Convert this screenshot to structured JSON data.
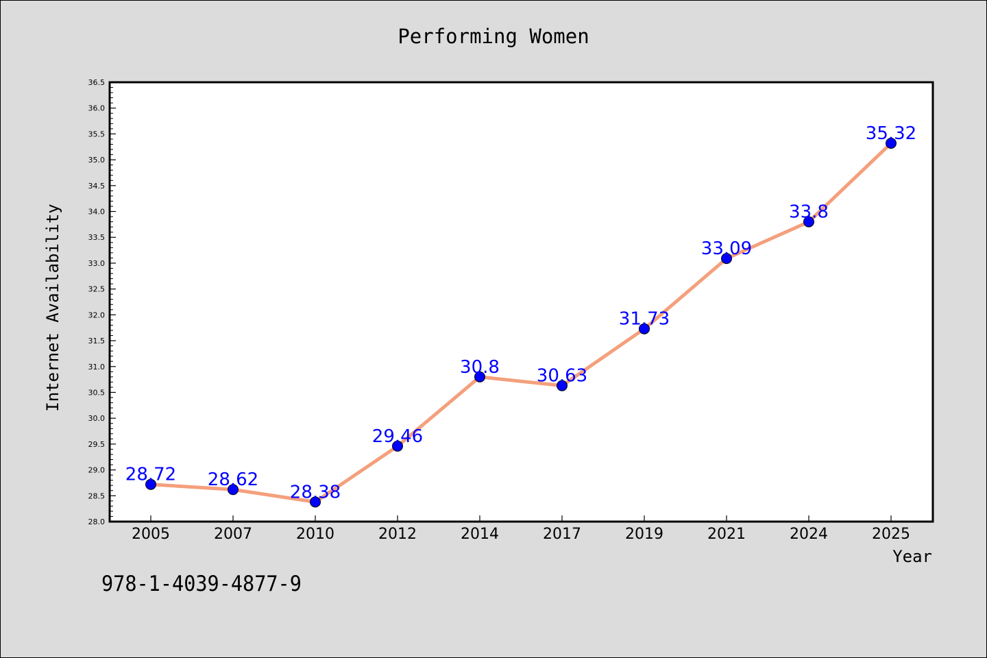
{
  "page": {
    "background": "#dcdcdc",
    "isbn": "978-1-4039-4877-9"
  },
  "chart_data": {
    "type": "line",
    "title": "Performing Women",
    "xlabel": "Year",
    "ylabel": "Internet Availability",
    "categories": [
      "2005",
      "2007",
      "2010",
      "2012",
      "2014",
      "2017",
      "2019",
      "2021",
      "2024",
      "2025"
    ],
    "series": [
      {
        "values": [
          28.72,
          28.62,
          28.38,
          29.46,
          30.8,
          30.63,
          31.73,
          33.09,
          33.8,
          35.32
        ]
      }
    ],
    "ylim": [
      28.0,
      36.5
    ],
    "y_ticks": [
      "28.0",
      "28.5",
      "29.0",
      "29.5",
      "30.0",
      "30.5",
      "31.0",
      "31.5",
      "32.0",
      "32.5",
      "33.0",
      "33.5",
      "34.0",
      "34.5",
      "35.0",
      "35.5",
      "36.0",
      "36.5"
    ],
    "data_labels": [
      "28.72",
      "28.62",
      "28.38",
      "29.46",
      "30.8",
      "30.63",
      "31.73",
      "33.09",
      "33.8",
      "35.32"
    ],
    "colors": {
      "line": "#f4a07c",
      "marker": "#0000ff",
      "label": "#0000ff",
      "plot_bg": "#ffffff"
    },
    "grid": false,
    "legend": "none"
  }
}
